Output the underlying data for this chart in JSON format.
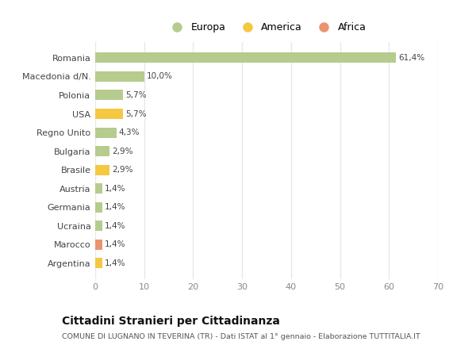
{
  "categories": [
    "Romania",
    "Macedonia d/N.",
    "Polonia",
    "USA",
    "Regno Unito",
    "Bulgaria",
    "Brasile",
    "Austria",
    "Germania",
    "Ucraina",
    "Marocco",
    "Argentina"
  ],
  "values": [
    61.4,
    10.0,
    5.7,
    5.7,
    4.3,
    2.9,
    2.9,
    1.4,
    1.4,
    1.4,
    1.4,
    1.4
  ],
  "labels": [
    "61,4%",
    "10,0%",
    "5,7%",
    "5,7%",
    "4,3%",
    "2,9%",
    "2,9%",
    "1,4%",
    "1,4%",
    "1,4%",
    "1,4%",
    "1,4%"
  ],
  "colors": [
    "#b5cc8e",
    "#b5cc8e",
    "#b5cc8e",
    "#f5c842",
    "#b5cc8e",
    "#b5cc8e",
    "#f5c842",
    "#b5cc8e",
    "#b5cc8e",
    "#b5cc8e",
    "#e8956d",
    "#f5c842"
  ],
  "legend": [
    {
      "label": "Europa",
      "color": "#b5cc8e"
    },
    {
      "label": "America",
      "color": "#f5c842"
    },
    {
      "label": "Africa",
      "color": "#e8956d"
    }
  ],
  "xlim": [
    0,
    70
  ],
  "xticks": [
    0,
    10,
    20,
    30,
    40,
    50,
    60,
    70
  ],
  "background_color": "#ffffff",
  "plot_bg_color": "#ffffff",
  "grid_color": "#e8e8e8",
  "title": "Cittadini Stranieri per Cittadinanza",
  "subtitle": "COMUNE DI LUGNANO IN TEVERINA (TR) - Dati ISTAT al 1° gennaio - Elaborazione TUTTITALIA.IT",
  "bar_height": 0.55
}
